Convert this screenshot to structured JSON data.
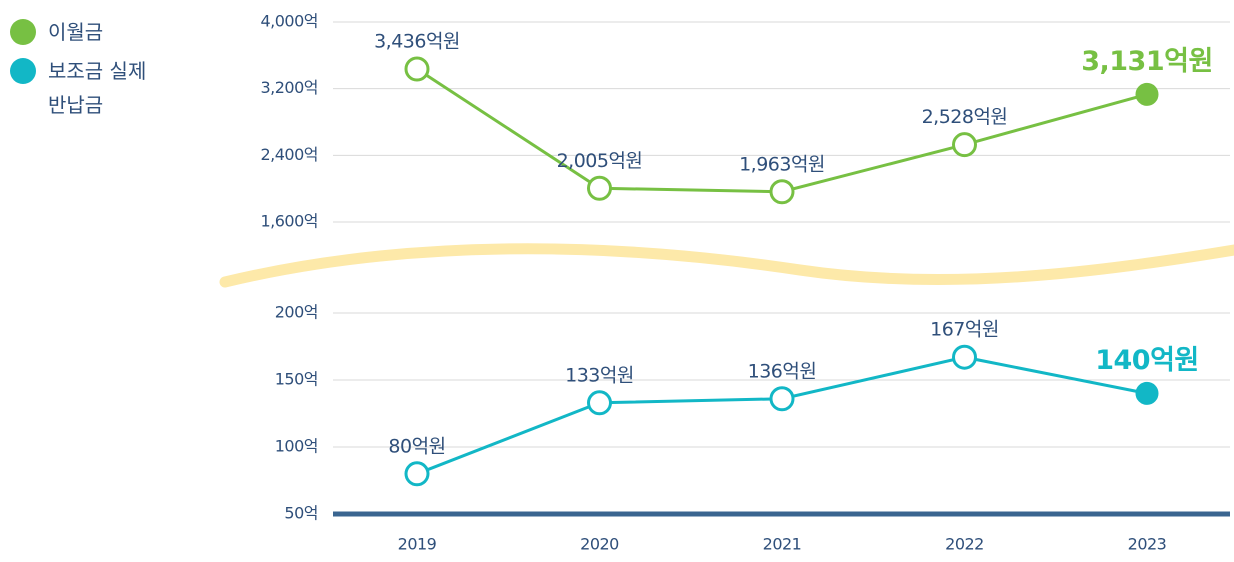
{
  "chart_data": {
    "type": "line",
    "categories": [
      "2019",
      "2020",
      "2021",
      "2022",
      "2023"
    ],
    "series": [
      {
        "name": "이월금",
        "color": "#77c043",
        "axis": "y2",
        "values": [
          3436,
          2005,
          1963,
          2528,
          3131
        ],
        "value_labels": [
          "3,436억원",
          "2,005억원",
          "1,963억원",
          "2,528억원",
          "3,131억원"
        ]
      },
      {
        "name": "보조금 실제반납금",
        "color": "#12b7c6",
        "values": [
          80,
          133,
          136,
          167,
          140
        ],
        "value_labels": [
          "80억원",
          "133억원",
          "136억원",
          "167억원",
          "140억원"
        ]
      }
    ],
    "ylim": [
      50,
      200
    ],
    "yticks": [
      {
        "value": 50,
        "label": "50억"
      },
      {
        "value": 100,
        "label": "100억"
      },
      {
        "value": 150,
        "label": "150억"
      },
      {
        "value": 200,
        "label": "200억"
      }
    ],
    "y2lim": [
      1600,
      4000
    ],
    "y2ticks": [
      {
        "value": 1600,
        "label": "1,600억"
      },
      {
        "value": 2400,
        "label": "2,400억"
      },
      {
        "value": 3200,
        "label": "3,200억"
      },
      {
        "value": 4000,
        "label": "4,000억"
      }
    ],
    "grid": true
  }
}
